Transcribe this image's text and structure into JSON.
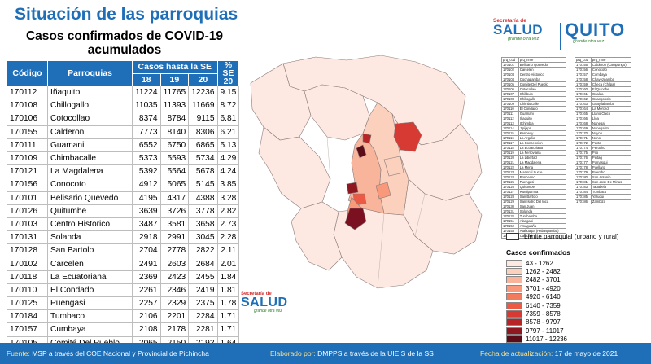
{
  "header": {
    "title": "Situación de las parroquias",
    "table_title_line1": "Casos confirmados de COVID-19",
    "table_title_line2": "acumulados"
  },
  "table": {
    "col_code": "Código",
    "col_parish": "Parroquias",
    "col_group": "Casos hasta la SE",
    "col_se18": "18",
    "col_se19": "19",
    "col_se20": "20",
    "col_pct": "% SE 20",
    "rows": [
      {
        "code": "170112",
        "name": "Iñaquito",
        "se18": "11224",
        "se19": "11765",
        "se20": "12236",
        "pct": "9.15"
      },
      {
        "code": "170108",
        "name": "Chillogallo",
        "se18": "11035",
        "se19": "11393",
        "se20": "11669",
        "pct": "8.72"
      },
      {
        "code": "170106",
        "name": "Cotocollao",
        "se18": "8374",
        "se19": "8784",
        "se20": "9115",
        "pct": "6.81"
      },
      {
        "code": "170155",
        "name": "Calderon",
        "se18": "7773",
        "se19": "8140",
        "se20": "8306",
        "pct": "6.21"
      },
      {
        "code": "170111",
        "name": "Guamani",
        "se18": "6552",
        "se19": "6750",
        "se20": "6865",
        "pct": "5.13"
      },
      {
        "code": "170109",
        "name": "Chimbacalle",
        "se18": "5373",
        "se19": "5593",
        "se20": "5734",
        "pct": "4.29"
      },
      {
        "code": "170121",
        "name": "La Magdalena",
        "se18": "5392",
        "se19": "5564",
        "se20": "5678",
        "pct": "4.24"
      },
      {
        "code": "170156",
        "name": "Conocoto",
        "se18": "4912",
        "se19": "5065",
        "se20": "5145",
        "pct": "3.85"
      },
      {
        "code": "170101",
        "name": "Belisario Quevedo",
        "se18": "4195",
        "se19": "4317",
        "se20": "4388",
        "pct": "3.28"
      },
      {
        "code": "170126",
        "name": "Quitumbe",
        "se18": "3639",
        "se19": "3726",
        "se20": "3778",
        "pct": "2.82"
      },
      {
        "code": "170103",
        "name": "Centro Historico",
        "se18": "3487",
        "se19": "3581",
        "se20": "3658",
        "pct": "2.73"
      },
      {
        "code": "170131",
        "name": "Solanda",
        "se18": "2918",
        "se19": "2991",
        "se20": "3045",
        "pct": "2.28"
      },
      {
        "code": "170128",
        "name": "San Bartolo",
        "se18": "2704",
        "se19": "2778",
        "se20": "2822",
        "pct": "2.11"
      },
      {
        "code": "170102",
        "name": "Carcelen",
        "se18": "2491",
        "se19": "2603",
        "se20": "2684",
        "pct": "2.01"
      },
      {
        "code": "170118",
        "name": "La Ecuatoriana",
        "se18": "2369",
        "se19": "2423",
        "se20": "2455",
        "pct": "1.84"
      },
      {
        "code": "170110",
        "name": "El Condado",
        "se18": "2261",
        "se19": "2346",
        "se20": "2419",
        "pct": "1.81"
      },
      {
        "code": "170125",
        "name": "Puengasi",
        "se18": "2257",
        "se19": "2329",
        "se20": "2375",
        "pct": "1.78"
      },
      {
        "code": "170184",
        "name": "Tumbaco",
        "se18": "2106",
        "se19": "2201",
        "se20": "2284",
        "pct": "1.71"
      },
      {
        "code": "170157",
        "name": "Cumbaya",
        "se18": "2108",
        "se19": "2178",
        "se20": "2281",
        "pct": "1.71"
      },
      {
        "code": "170105",
        "name": "Comité Del Pueblo",
        "se18": "2065",
        "se19": "2150",
        "se20": "2192",
        "pct": "1.64"
      }
    ]
  },
  "logos": {
    "secretaria": "Secretaría de",
    "salud": "SALUD",
    "slogan": "grande otra vez",
    "quito": "QUITO",
    "quito_slogan": "grande otra vez"
  },
  "code_list": {
    "header_code": "prq_cod",
    "header_name": "prq_nme",
    "left": [
      [
        "170101",
        "Belisario Quevedo"
      ],
      [
        "170102",
        "Carcelen"
      ],
      [
        "170103",
        "Centro Historico"
      ],
      [
        "170104",
        "Cochapamba"
      ],
      [
        "170105",
        "Comite Del Pueblo"
      ],
      [
        "170106",
        "Cotocollao"
      ],
      [
        "170107",
        "Chilibulo"
      ],
      [
        "170108",
        "Chillogallo"
      ],
      [
        "170109",
        "Chimbacalle"
      ],
      [
        "170110",
        "El Condado"
      ],
      [
        "170111",
        "Guamani"
      ],
      [
        "170112",
        "Iñaquito"
      ],
      [
        "170113",
        "Itchimbia"
      ],
      [
        "170114",
        "Jipijapa"
      ],
      [
        "170115",
        "Kennedy"
      ],
      [
        "170116",
        "La Argelia"
      ],
      [
        "170117",
        "La Concepcion"
      ],
      [
        "170118",
        "La Ecuatoriana"
      ],
      [
        "170119",
        "La Ferroviaria"
      ],
      [
        "170120",
        "La Libertad"
      ],
      [
        "170121",
        "La Magdalena"
      ],
      [
        "170122",
        "La Mena"
      ],
      [
        "170123",
        "Mariscal Sucre"
      ],
      [
        "170124",
        "Ponceano"
      ],
      [
        "170125",
        "Puengasi"
      ],
      [
        "170126",
        "Quitumbe"
      ],
      [
        "170127",
        "Rumipamba"
      ],
      [
        "170128",
        "San Bartolo"
      ],
      [
        "170129",
        "San Isidro Del Inca"
      ],
      [
        "170130",
        "San Juan"
      ],
      [
        "170131",
        "Solanda"
      ],
      [
        "170132",
        "Turubamba"
      ],
      [
        "170151",
        "Alangasi"
      ],
      [
        "170152",
        "Amaguaña"
      ],
      [
        "170153",
        "Atahualpa (Habaspamba)"
      ],
      [
        "170154",
        "Calacali"
      ]
    ],
    "right": [
      [
        "170155",
        "Calderon (Carapungo)"
      ],
      [
        "170156",
        "Conocoto"
      ],
      [
        "170157",
        "Cumbaya"
      ],
      [
        "170158",
        "Chavezpamba"
      ],
      [
        "170159",
        "Checa (Chilpa)"
      ],
      [
        "170160",
        "El Quinche"
      ],
      [
        "170161",
        "Gualea"
      ],
      [
        "170162",
        "Guangopolo"
      ],
      [
        "170163",
        "Guayllabamba"
      ],
      [
        "170164",
        "La Merced"
      ],
      [
        "170165",
        "Llano Chico"
      ],
      [
        "170166",
        "Lloa"
      ],
      [
        "170168",
        "Nanegal"
      ],
      [
        "170169",
        "Nanegalito"
      ],
      [
        "170170",
        "Nayon"
      ],
      [
        "170171",
        "Nono"
      ],
      [
        "170172",
        "Pacto"
      ],
      [
        "170174",
        "Perucho"
      ],
      [
        "170175",
        "Pifo"
      ],
      [
        "170176",
        "Pintag"
      ],
      [
        "170177",
        "Pomasqui"
      ],
      [
        "170178",
        "Puellaro"
      ],
      [
        "170179",
        "Puembo"
      ],
      [
        "170180",
        "San Antonio"
      ],
      [
        "170181",
        "San Jose De Minas"
      ],
      [
        "170183",
        "Tababela"
      ],
      [
        "170184",
        "Tumbaco"
      ],
      [
        "170185",
        "Yaruqui"
      ],
      [
        "170186",
        "Zambiza"
      ]
    ]
  },
  "legend": {
    "boundary_label": "Límite parroquial (urbano y rural)",
    "title": "Casos confirmados",
    "items": [
      {
        "label": "43 - 1262",
        "color": "#fde9e1"
      },
      {
        "label": "1262 - 2482",
        "color": "#fbd0bd"
      },
      {
        "label": "2482 - 3701",
        "color": "#f9b59c"
      },
      {
        "label": "3701 - 4920",
        "color": "#f7997a"
      },
      {
        "label": "4920 - 6140",
        "color": "#f37b5d"
      },
      {
        "label": "6140 - 7359",
        "color": "#ec5a45"
      },
      {
        "label": "7359 - 8578",
        "color": "#d63a33"
      },
      {
        "label": "8578 - 9797",
        "color": "#b82526"
      },
      {
        "label": "9797 - 11017",
        "color": "#8f1720"
      },
      {
        "label": "11017 - 12236",
        "color": "#5c0c17"
      }
    ]
  },
  "footer": {
    "source_label": "Fuente:",
    "source": "MSP a través del COE Nacional y Provincial de Pichincha",
    "made_label": "Elaborado por:",
    "made": "DMPPS a través de la UIEIS de la SS",
    "date_label": "Fecha de actualización:",
    "date": "17 de mayo de 2021"
  }
}
